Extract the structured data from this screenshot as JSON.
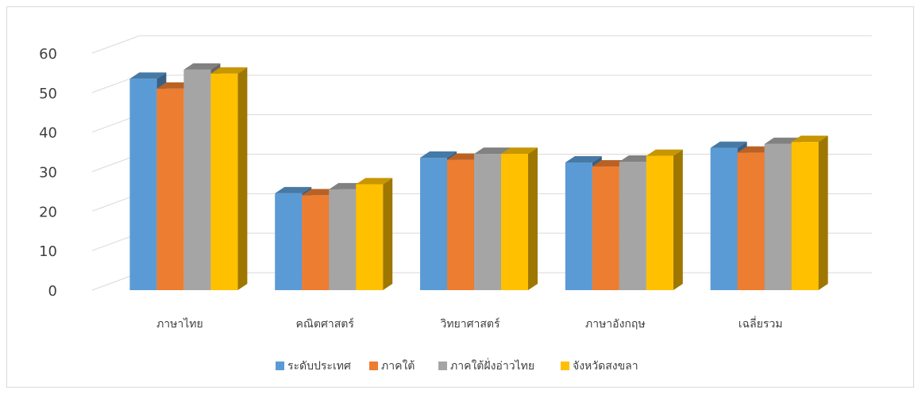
{
  "chart_data": {
    "type": "bar",
    "style": "3d-clustered-column",
    "categories": [
      "ภาษาไทย",
      "คณิตศาสตร์",
      "วิทยาศาสตร์",
      "ภาษาอังกฤษ",
      "เฉลี่ยรวม"
    ],
    "series": [
      {
        "name": "ระดับประเทศ",
        "color": "#5B9BD5",
        "values": [
          53.5,
          24.5,
          33.5,
          32.3,
          36.0
        ]
      },
      {
        "name": "ภาคใต้",
        "color": "#ED7D31",
        "values": [
          51.0,
          24.0,
          33.0,
          31.3,
          34.8
        ]
      },
      {
        "name": "ภาคใต้ฝั่งอ่าวไทย",
        "color": "#A5A5A5",
        "values": [
          55.8,
          25.5,
          34.5,
          32.5,
          37.0
        ]
      },
      {
        "name": "จังหวัดสงขลา",
        "color": "#FFC000",
        "values": [
          54.8,
          26.8,
          34.5,
          34.0,
          37.5
        ]
      }
    ],
    "yticks": [
      0,
      10,
      20,
      30,
      40,
      50,
      60
    ],
    "ylim": [
      0,
      60
    ],
    "grid": true,
    "legend": "bottom",
    "title": "",
    "xlabel": "",
    "ylabel": ""
  }
}
